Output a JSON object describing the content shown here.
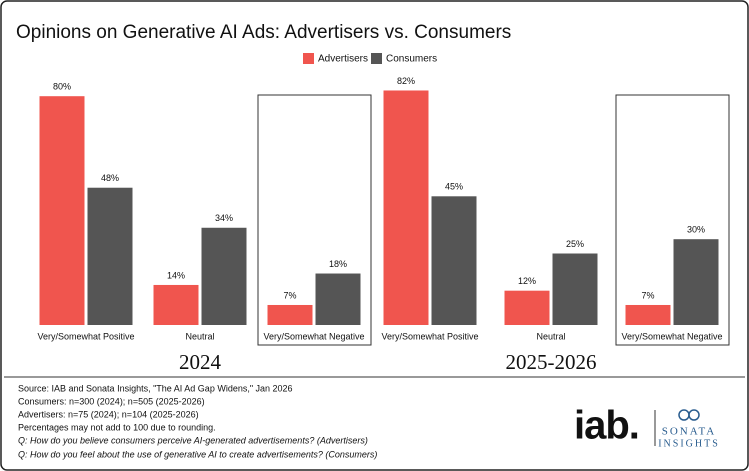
{
  "chart_data": {
    "type": "bar",
    "title": "Opinions on Generative AI Ads: Advertisers vs. Consumers",
    "groups": [
      "2024",
      "2025-2026"
    ],
    "categories": [
      "Very/Somewhat Positive",
      "Neutral",
      "Very/Somewhat Negative",
      "Very/Somewhat Positive",
      "Neutral",
      "Very/Somewhat Negative"
    ],
    "series": [
      {
        "name": "Advertisers",
        "color": "#f0554e",
        "values": [
          80,
          14,
          7,
          82,
          12,
          7
        ],
        "value_labels": [
          "80%",
          "14%",
          "7%",
          "82%",
          "12%",
          "7%"
        ]
      },
      {
        "name": "Consumers",
        "color": "#555555",
        "values": [
          48,
          34,
          18,
          45,
          25,
          30
        ],
        "value_labels": [
          "48%",
          "34%",
          "18%",
          "45%",
          "25%",
          "30%"
        ]
      }
    ]
  },
  "footer": {
    "source": "Source: IAB and Sonata Insights, \"The AI Ad Gap Widens,\" Jan 2026",
    "notes": [
      "Consumers: n=300 (2024); n=505 (2025-2026)",
      "Advertisers: n=75 (2024); n=104 (2025-2026)",
      "Percentages may not add to 100 due to rounding."
    ],
    "questions": [
      "Q: How do you believe consumers perceive AI-generated advertisements? (Advertisers)",
      "Q: How do you feel about the use of generative AI to create advertisements? (Consumers)"
    ],
    "logos": [
      "iab.",
      "SONATA",
      "INSIGHTS"
    ]
  }
}
